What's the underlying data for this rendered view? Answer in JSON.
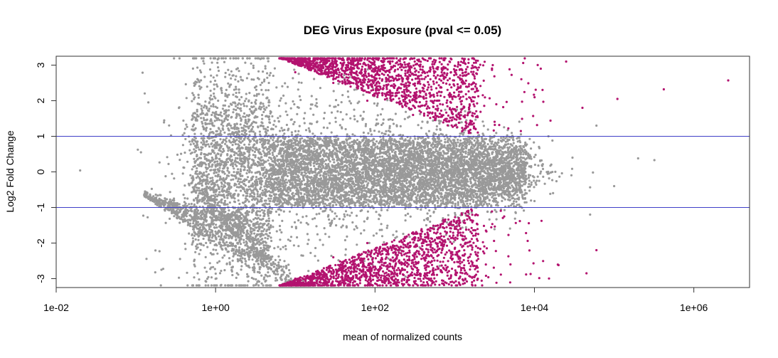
{
  "chart_data": {
    "type": "scatter",
    "title": "DEG Virus Exposure  (pval <= 0.05)",
    "xlabel": "mean of normalized counts",
    "ylabel": "Log2 Fold Change",
    "x_scale": "log10",
    "xlim": [
      0.01,
      5000000
    ],
    "ylim": [
      -3.25,
      3.25
    ],
    "x_ticks": [
      "1e-02",
      "1e+00",
      "1e+02",
      "1e+04",
      "1e+06"
    ],
    "x_tick_values": [
      0.01,
      1,
      100,
      10000,
      1000000
    ],
    "y_ticks": [
      "-3",
      "-2",
      "-1",
      "0",
      "1",
      "2",
      "3"
    ],
    "y_tick_values": [
      -3,
      -2,
      -1,
      0,
      1,
      2,
      3
    ],
    "reference_lines": [
      1,
      -1
    ],
    "colors": {
      "not_significant": "#999999",
      "significant": "#b3136f",
      "reference_line": "#3f3fc8"
    },
    "series": [
      {
        "role": "not_significant",
        "points": [
          [
            0.02,
            0.04
          ],
          [
            0.13,
            -0.55
          ],
          [
            0.2,
            -0.65
          ],
          [
            0.3,
            -0.75
          ],
          [
            0.5,
            -0.9
          ],
          [
            1.0,
            -1.1
          ],
          [
            2.0,
            0.5
          ],
          [
            5.0,
            1.2
          ],
          [
            20,
            -0.3
          ],
          [
            100,
            0.1
          ],
          [
            500,
            0.2
          ],
          [
            2000,
            -0.2
          ],
          [
            15000,
            1.0
          ],
          [
            30000,
            0.4
          ],
          [
            60000,
            1.3
          ],
          [
            100000,
            -0.4
          ],
          [
            200000,
            0.38
          ],
          [
            320000,
            0.33
          ],
          [
            50000,
            -1.2
          ]
        ]
      },
      {
        "role": "significant",
        "points": [
          [
            10,
            2.8
          ],
          [
            30,
            2.5
          ],
          [
            80,
            2.0
          ],
          [
            300,
            1.6
          ],
          [
            1000,
            1.3
          ],
          [
            10,
            -3.0
          ],
          [
            30,
            -2.4
          ],
          [
            80,
            -2.0
          ],
          [
            300,
            -1.7
          ],
          [
            1000,
            -1.6
          ],
          [
            12000,
            2.9
          ],
          [
            25000,
            3.1
          ],
          [
            40000,
            1.8
          ],
          [
            60000,
            -2.2
          ],
          [
            110000,
            2.05
          ],
          [
            420000,
            2.32
          ],
          [
            2700000,
            2.57
          ],
          [
            45000,
            -2.85
          ],
          [
            5000,
            -2.6
          ],
          [
            3000,
            3.0
          ]
        ]
      }
    ]
  }
}
